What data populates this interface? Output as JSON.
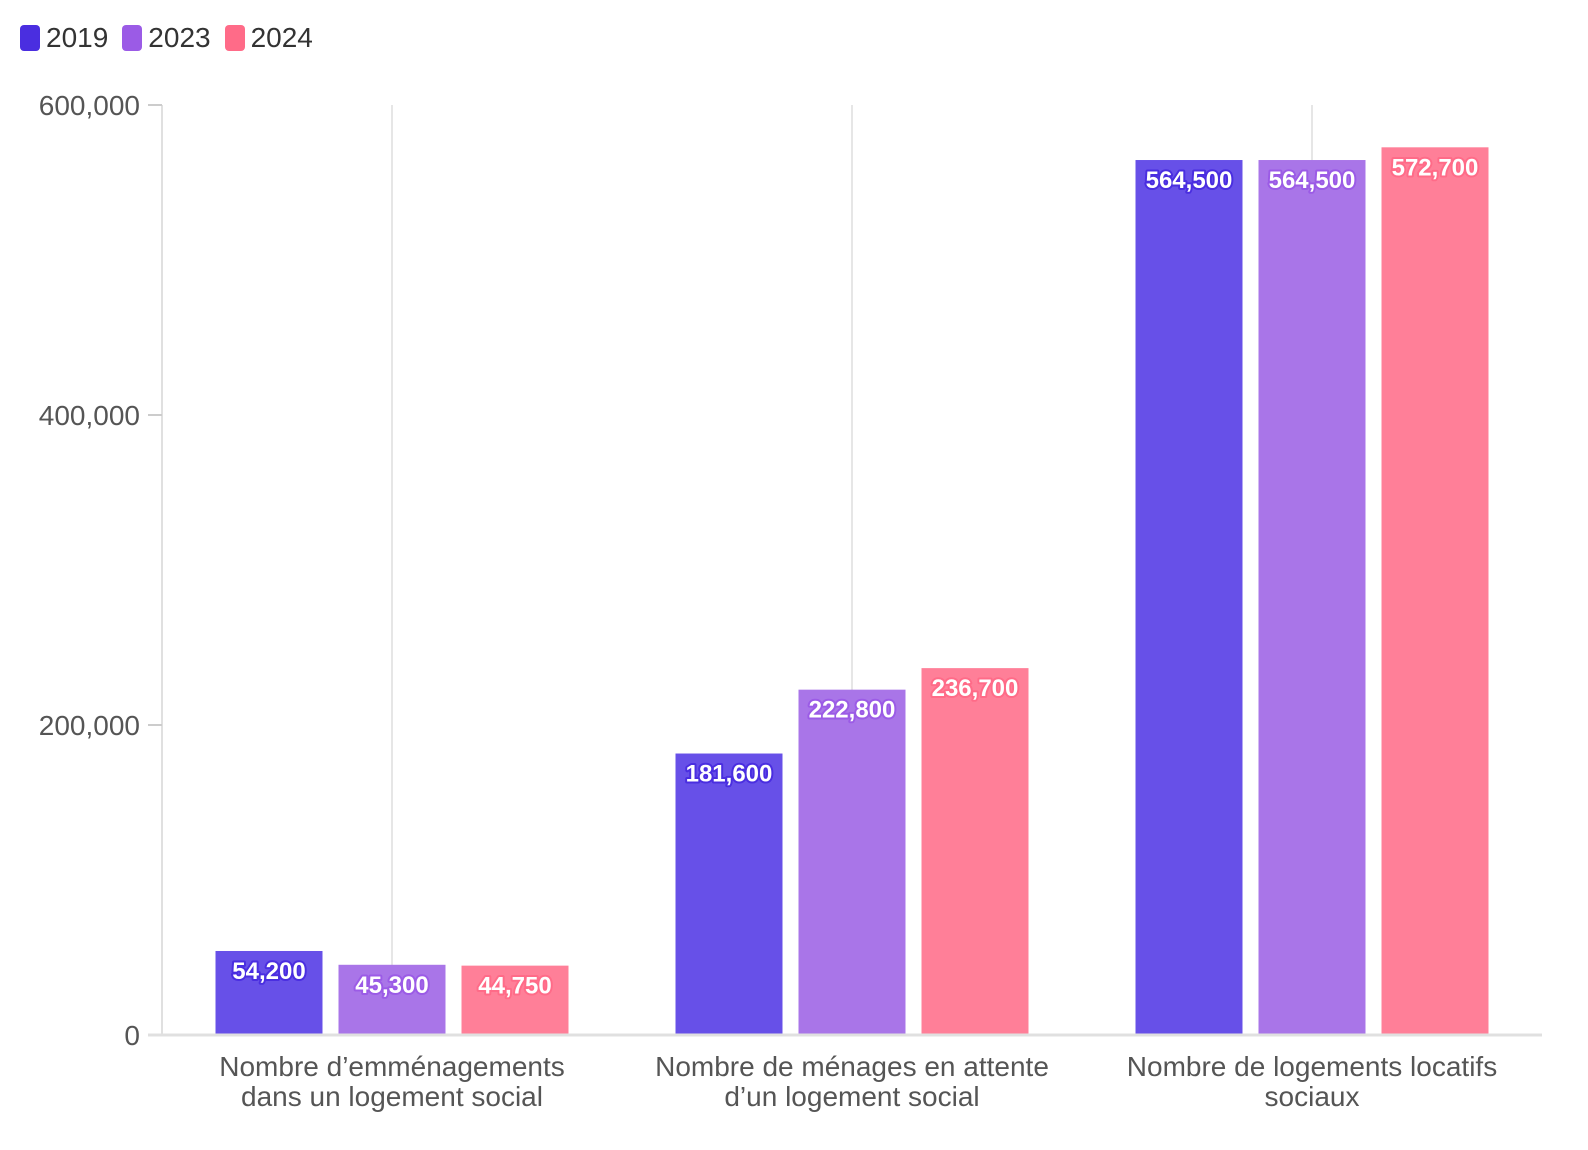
{
  "chart_data": {
    "type": "bar",
    "categories": [
      [
        "Nombre d’emménagements",
        "dans un logement social"
      ],
      [
        "Nombre de ménages en attente",
        "d’un logement social"
      ],
      [
        "Nombre de logements locatifs",
        "sociaux"
      ]
    ],
    "series": [
      {
        "name": "2019",
        "color": "#6750e8",
        "legend_color": "#4a2ee0",
        "values": [
          54200,
          181600,
          564500
        ],
        "labels": [
          "54,200",
          "181,600",
          "564,500"
        ]
      },
      {
        "name": "2023",
        "color": "#a975e8",
        "legend_color": "#9b5be6",
        "values": [
          45300,
          222800,
          564500
        ],
        "labels": [
          "45,300",
          "222,800",
          "564,500"
        ]
      },
      {
        "name": "2024",
        "color": "#ff7f98",
        "legend_color": "#ff6b88",
        "values": [
          44750,
          236700,
          572700
        ],
        "labels": [
          "44,750",
          "236,700",
          "572,700"
        ]
      }
    ],
    "y_ticks": [
      {
        "value": 0,
        "label": "0"
      },
      {
        "value": 200000,
        "label": "200,000"
      },
      {
        "value": 400000,
        "label": "400,000"
      },
      {
        "value": 600000,
        "label": "600,000"
      }
    ],
    "ylim": [
      0,
      600000
    ],
    "legend": "top-left",
    "grid": "vertical lines at category centers"
  }
}
